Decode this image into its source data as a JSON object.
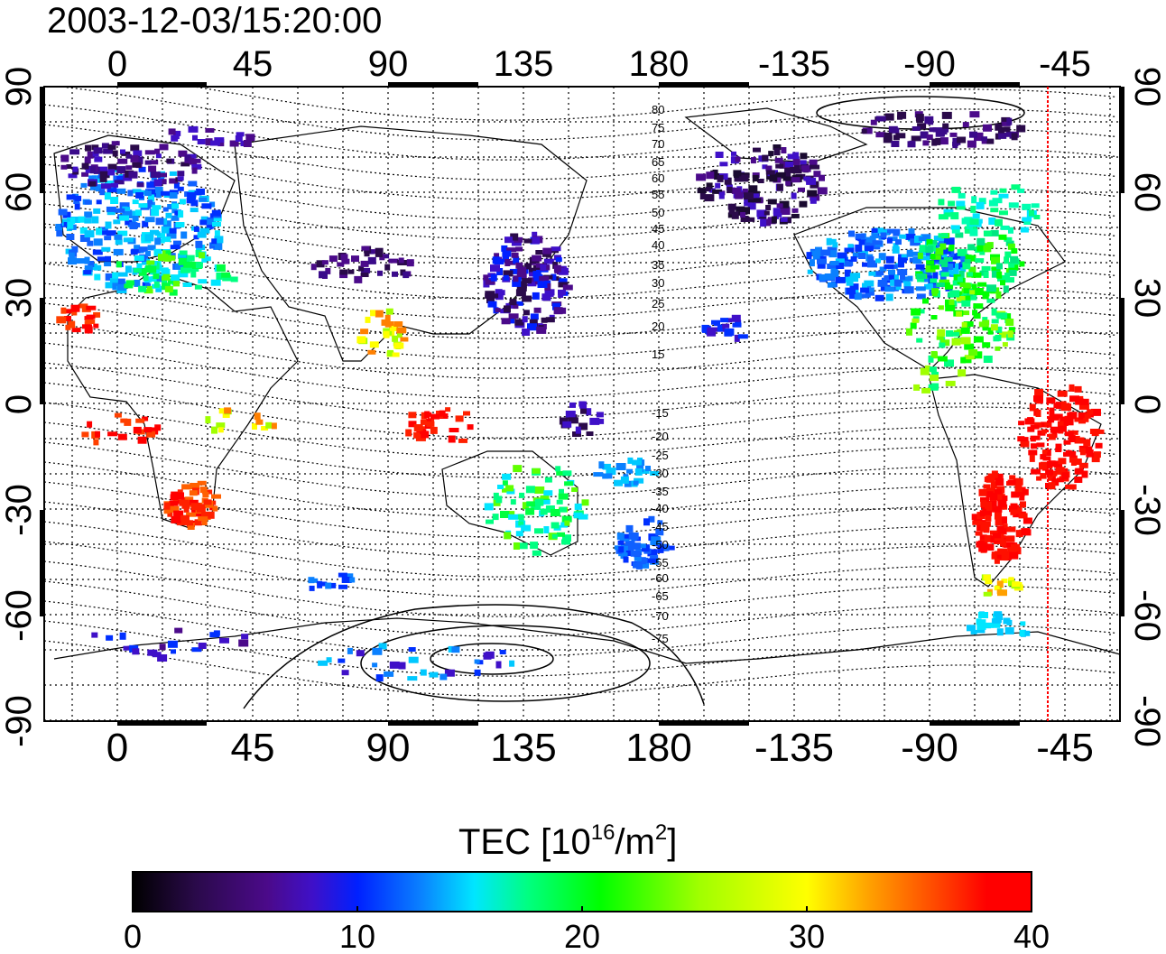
{
  "timestamp": "2003-12-03/15:20:00",
  "map": {
    "x_ticks": [
      "0",
      "45",
      "90",
      "135",
      "180",
      "-135",
      "-90",
      "-45"
    ],
    "y_ticks": [
      "90",
      "60",
      "30",
      "0",
      "-30",
      "-60",
      "-90"
    ],
    "contour_labels": [
      "80",
      "75",
      "70",
      "65",
      "60",
      "55",
      "50",
      "45",
      "40",
      "35",
      "30",
      "25",
      "20",
      "15",
      "-15",
      "-20",
      "-25",
      "-30",
      "-35",
      "-40",
      "-45",
      "-50",
      "-55",
      "-60",
      "-65",
      "-70",
      "-75"
    ],
    "meridian_line_color": "#ff0000"
  },
  "colorbar": {
    "title_prefix": "TEC  [10",
    "title_sup1": "16",
    "title_mid": "/m",
    "title_sup2": "2",
    "title_suffix": "]",
    "tick_labels": [
      "0",
      "10",
      "20",
      "30",
      "40"
    ],
    "colors": [
      "#000000",
      "#2a0a4a",
      "#4b0a8a",
      "#3f10c8",
      "#0020ff",
      "#0a80ff",
      "#00e6ff",
      "#00ff80",
      "#00ff00",
      "#a0ff00",
      "#ffff00",
      "#ffa000",
      "#ff4000",
      "#ff0000",
      "#ff0000"
    ]
  }
}
